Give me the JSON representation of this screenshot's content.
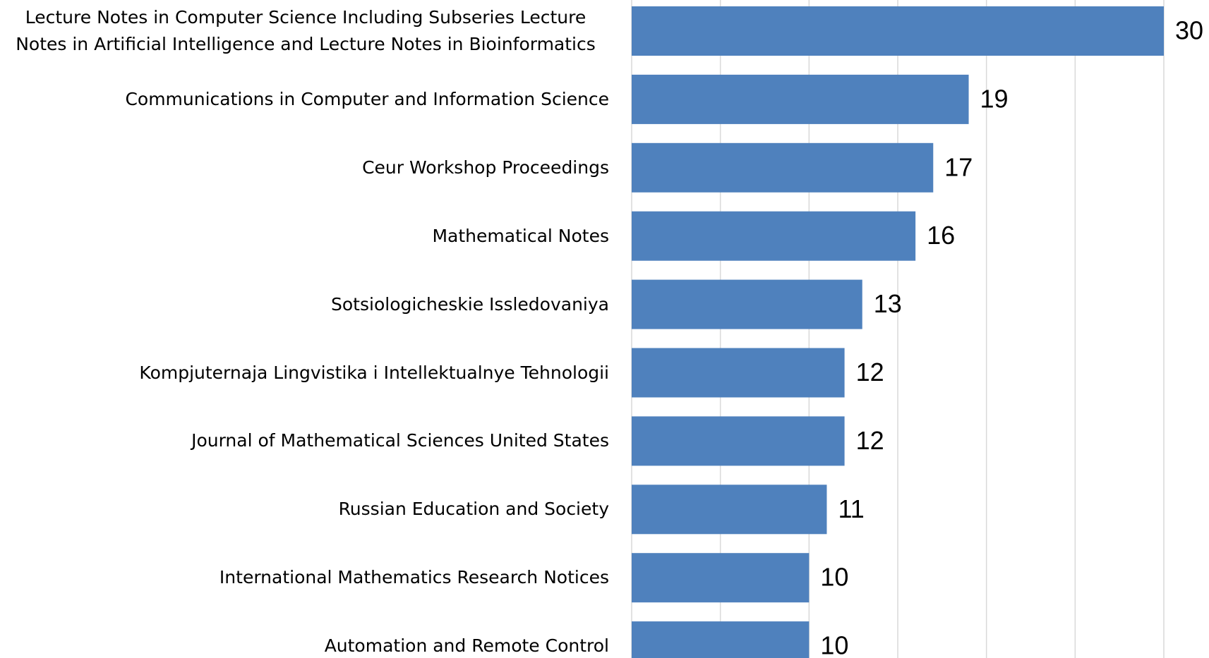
{
  "chart_data": {
    "type": "barh",
    "categories": [
      "Lecture Notes in Computer Science Including Subseries Lecture Notes in Artificial Intelligence and Lecture Notes in Bioinformatics",
      "Communications in Computer and Information Science",
      "Ceur Workshop Proceedings",
      "Mathematical Notes",
      "Sotsiologicheskie Issledovaniya",
      "Kompjuternaja Lingvistika i Intellektualnye Tehnologii",
      "Journal of Mathematical Sciences United States",
      "Russian Education and Society",
      "International Mathematics Research Notices",
      "Automation and Remote Control"
    ],
    "values": [
      30,
      19,
      17,
      16,
      13,
      12,
      12,
      11,
      10,
      10
    ],
    "color": "#4f81bd",
    "xlim": [
      0,
      30
    ],
    "xticks": [
      0,
      5,
      10,
      15,
      20,
      25,
      30
    ],
    "grid": true
  }
}
